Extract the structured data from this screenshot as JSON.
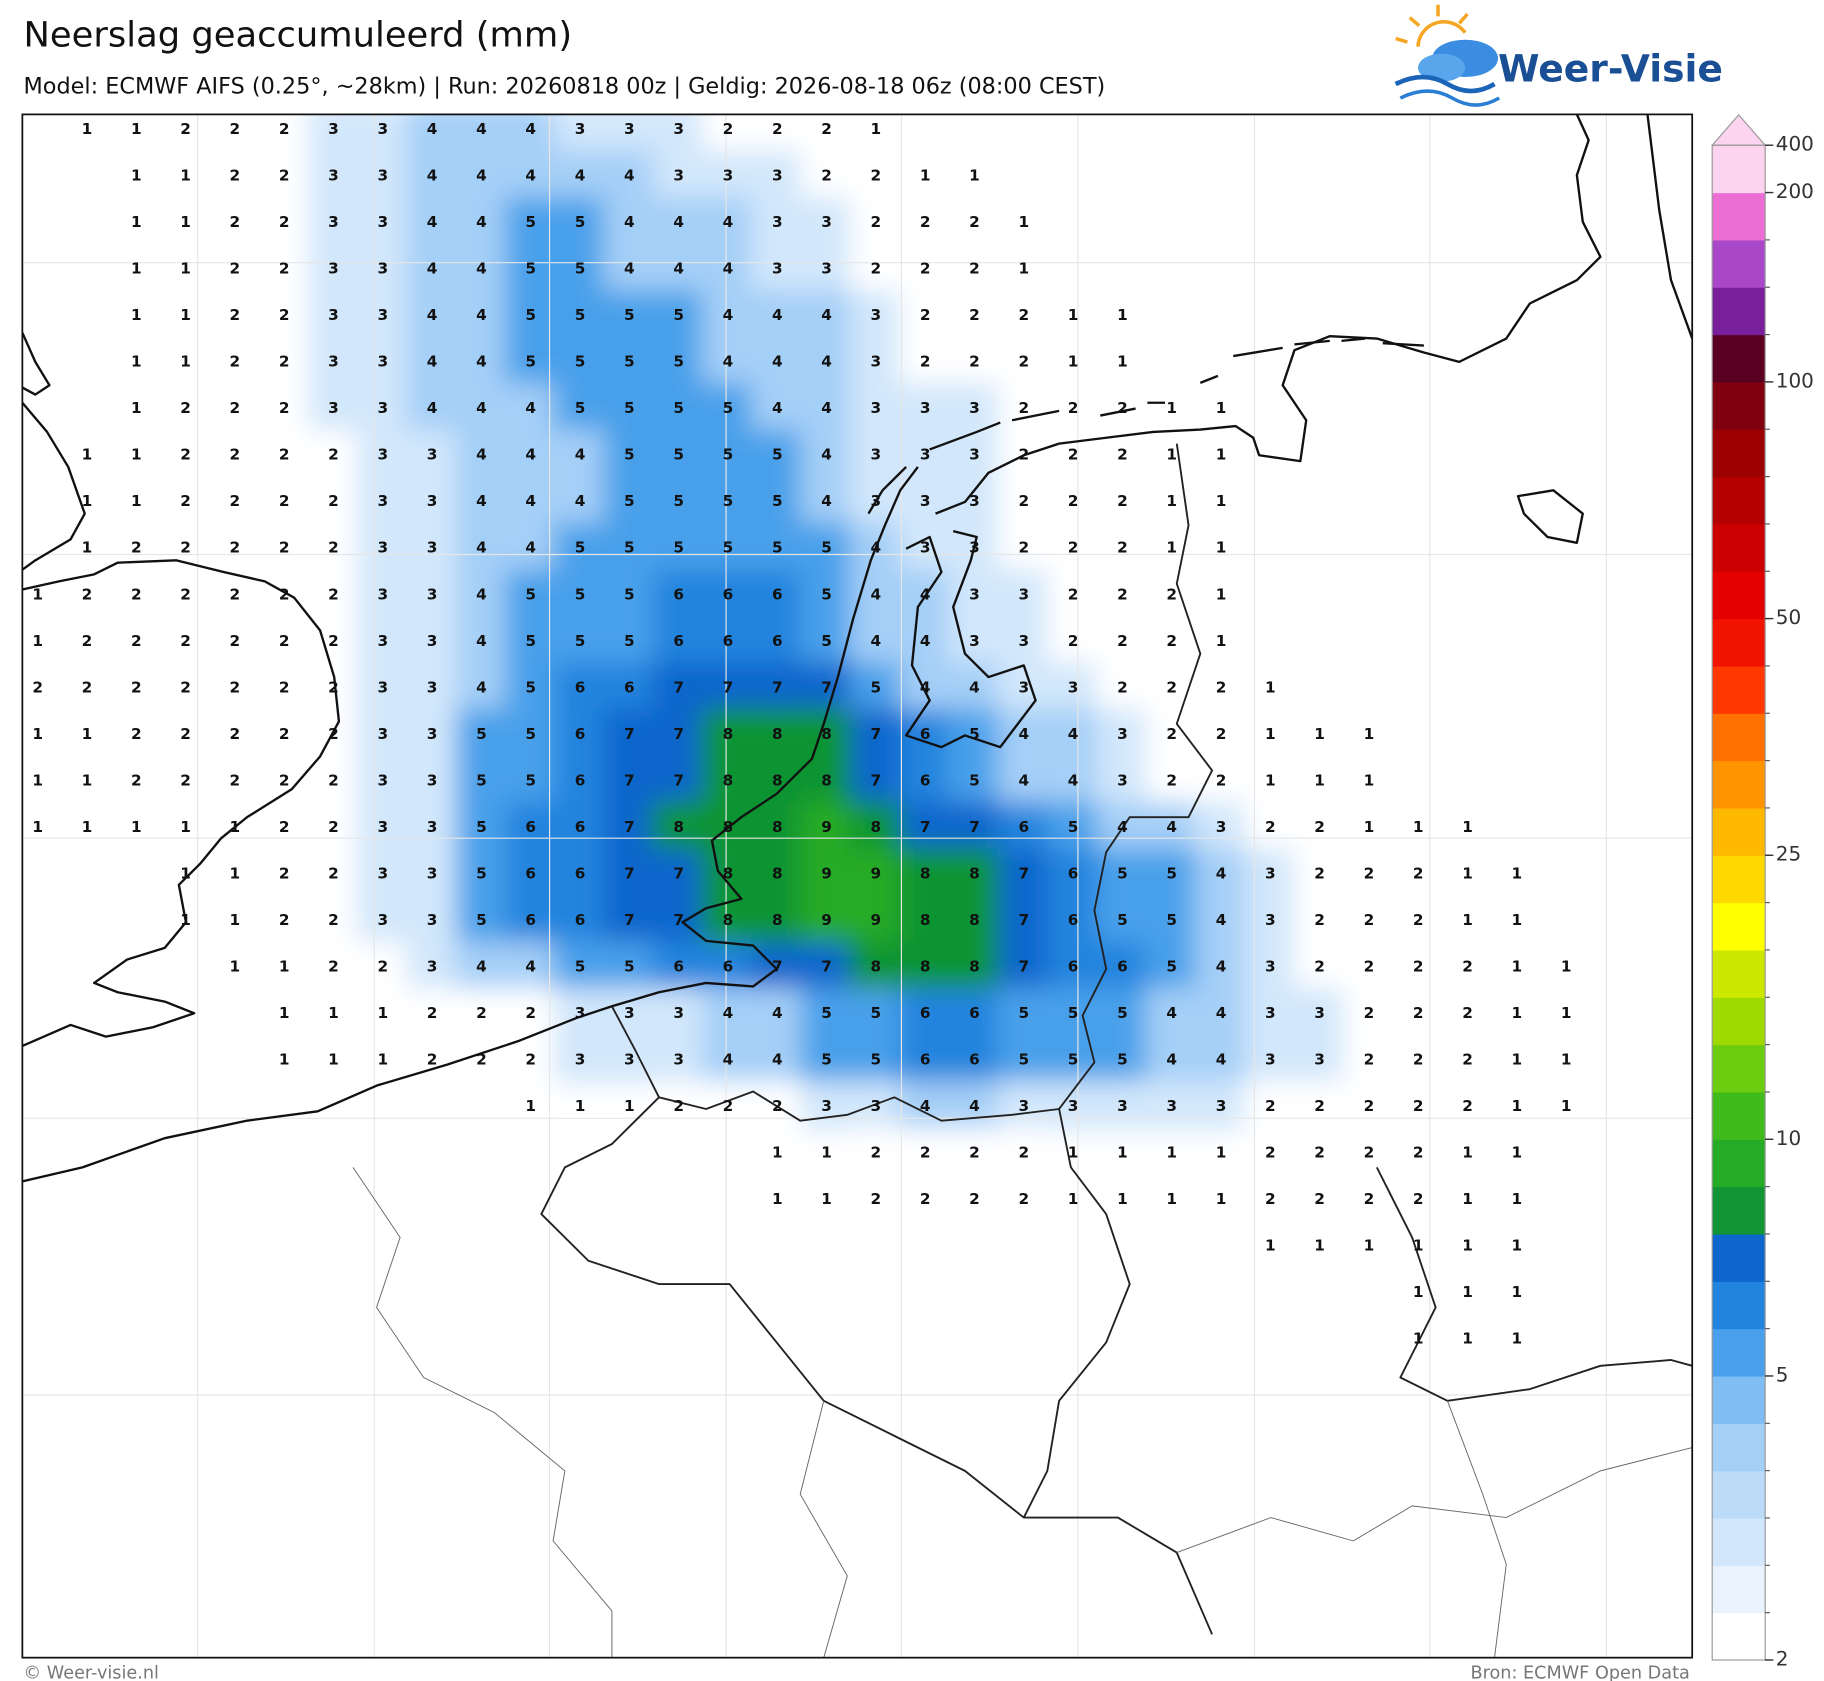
{
  "header": {
    "title": "Neerslag geaccumuleerd (mm)",
    "subtitle": "Model: ECMWF AIFS (0.25°, ~28km)  |  Run: 20260818 00z  |  Geldig: 2026-08-18 06z (08:00 CEST)",
    "logo": "Weer-Visie"
  },
  "colorbar": {
    "levels": [
      2,
      2.5,
      3,
      3.5,
      4,
      4.5,
      5,
      6,
      7,
      8,
      9,
      10,
      12.5,
      15,
      17.5,
      20,
      22.5,
      25,
      30,
      35,
      40,
      45,
      50,
      60,
      70,
      80,
      90,
      100,
      125,
      150,
      175,
      200,
      400
    ],
    "colors": [
      "#ffffff",
      "#e8f3fd",
      "#d2e7fb",
      "#bbdbf9",
      "#a4cff7",
      "#7fbdf2",
      "#4aa0ea",
      "#2284de",
      "#0d66cc",
      "#119433",
      "#25ab25",
      "#3fbb1c",
      "#6ccc10",
      "#9ed900",
      "#cce800",
      "#ffff00",
      "#ffd800",
      "#ffb800",
      "#ff9400",
      "#ff7000",
      "#ff3800",
      "#f01400",
      "#e40000",
      "#cc0000",
      "#b40000",
      "#9c0000",
      "#800010",
      "#5a0020",
      "#7a1f9c",
      "#a847c8",
      "#ec6ed4",
      "#fcd4f0"
    ],
    "ticks": [
      2,
      5,
      10,
      25,
      50,
      100,
      200,
      400
    ]
  },
  "grid": {
    "rows": [
      [
        null,
        1,
        1,
        2,
        2,
        2,
        3,
        3,
        4,
        4,
        4,
        3,
        3,
        3,
        2,
        2,
        2,
        1,
        null,
        null,
        null,
        null,
        null,
        null,
        null,
        null,
        null,
        null,
        null,
        null,
        null,
        null
      ],
      [
        null,
        null,
        1,
        1,
        2,
        2,
        3,
        3,
        4,
        4,
        4,
        4,
        4,
        3,
        3,
        3,
        2,
        2,
        1,
        1,
        null,
        null,
        null,
        null,
        null,
        null,
        null,
        null,
        null,
        null,
        null,
        null
      ],
      [
        null,
        null,
        1,
        1,
        2,
        2,
        3,
        3,
        4,
        4,
        5,
        5,
        4,
        4,
        4,
        3,
        3,
        2,
        2,
        2,
        1,
        null,
        null,
        null,
        null,
        null,
        null,
        null,
        null,
        null,
        null,
        null
      ],
      [
        null,
        null,
        1,
        1,
        2,
        2,
        3,
        3,
        4,
        4,
        5,
        5,
        4,
        4,
        4,
        3,
        3,
        2,
        2,
        2,
        1,
        null,
        null,
        null,
        null,
        null,
        null,
        null,
        null,
        null,
        null,
        null
      ],
      [
        null,
        null,
        1,
        1,
        2,
        2,
        3,
        3,
        4,
        4,
        5,
        5,
        5,
        5,
        4,
        4,
        4,
        3,
        2,
        2,
        2,
        1,
        1,
        null,
        null,
        null,
        null,
        null,
        null,
        null,
        null,
        null
      ],
      [
        null,
        null,
        1,
        1,
        2,
        2,
        3,
        3,
        4,
        4,
        5,
        5,
        5,
        5,
        4,
        4,
        4,
        3,
        2,
        2,
        2,
        1,
        1,
        null,
        null,
        null,
        null,
        null,
        null,
        null,
        null,
        null
      ],
      [
        null,
        null,
        1,
        2,
        2,
        2,
        3,
        3,
        4,
        4,
        4,
        5,
        5,
        5,
        5,
        4,
        4,
        3,
        3,
        3,
        2,
        2,
        2,
        1,
        1,
        null,
        null,
        null,
        null,
        null,
        null,
        null
      ],
      [
        null,
        1,
        1,
        2,
        2,
        2,
        2,
        3,
        3,
        4,
        4,
        4,
        5,
        5,
        5,
        5,
        4,
        3,
        3,
        3,
        2,
        2,
        2,
        1,
        1,
        null,
        null,
        null,
        null,
        null,
        null,
        null
      ],
      [
        null,
        1,
        1,
        2,
        2,
        2,
        2,
        3,
        3,
        4,
        4,
        4,
        5,
        5,
        5,
        5,
        4,
        3,
        3,
        3,
        2,
        2,
        2,
        1,
        1,
        null,
        null,
        null,
        null,
        null,
        null,
        null
      ],
      [
        null,
        1,
        2,
        2,
        2,
        2,
        2,
        3,
        3,
        4,
        4,
        5,
        5,
        5,
        5,
        5,
        5,
        4,
        3,
        3,
        2,
        2,
        2,
        1,
        1,
        null,
        null,
        null,
        null,
        null,
        null,
        null
      ],
      [
        1,
        2,
        2,
        2,
        2,
        2,
        2,
        3,
        3,
        4,
        5,
        5,
        5,
        6,
        6,
        6,
        5,
        4,
        4,
        3,
        3,
        2,
        2,
        2,
        1,
        null,
        null,
        null,
        null,
        null,
        null,
        null
      ],
      [
        1,
        2,
        2,
        2,
        2,
        2,
        2,
        3,
        3,
        4,
        5,
        5,
        5,
        6,
        6,
        6,
        5,
        4,
        4,
        3,
        3,
        2,
        2,
        2,
        1,
        null,
        null,
        null,
        null,
        null,
        null,
        null
      ],
      [
        2,
        2,
        2,
        2,
        2,
        2,
        2,
        3,
        3,
        4,
        5,
        6,
        6,
        7,
        7,
        7,
        7,
        5,
        4,
        4,
        3,
        3,
        2,
        2,
        2,
        1,
        null,
        null,
        null,
        null,
        null,
        null
      ],
      [
        1,
        1,
        2,
        2,
        2,
        2,
        2,
        3,
        3,
        5,
        5,
        6,
        7,
        7,
        8,
        8,
        8,
        7,
        6,
        5,
        4,
        4,
        3,
        2,
        2,
        1,
        1,
        1,
        null,
        null,
        null,
        null
      ],
      [
        1,
        1,
        2,
        2,
        2,
        2,
        2,
        3,
        3,
        5,
        5,
        6,
        7,
        7,
        8,
        8,
        8,
        7,
        6,
        5,
        4,
        4,
        3,
        2,
        2,
        1,
        1,
        1,
        null,
        null,
        null,
        null
      ],
      [
        1,
        1,
        1,
        1,
        1,
        2,
        2,
        3,
        3,
        5,
        6,
        6,
        7,
        8,
        8,
        8,
        9,
        8,
        7,
        7,
        6,
        5,
        4,
        4,
        3,
        2,
        2,
        1,
        1,
        1,
        null,
        null
      ],
      [
        null,
        null,
        null,
        1,
        1,
        2,
        2,
        3,
        3,
        5,
        6,
        6,
        7,
        7,
        8,
        8,
        9,
        9,
        8,
        8,
        7,
        6,
        5,
        5,
        4,
        3,
        2,
        2,
        2,
        1,
        1,
        null
      ],
      [
        null,
        null,
        null,
        1,
        1,
        2,
        2,
        3,
        3,
        5,
        6,
        6,
        7,
        7,
        8,
        8,
        9,
        9,
        8,
        8,
        7,
        6,
        5,
        5,
        4,
        3,
        2,
        2,
        2,
        1,
        1,
        null
      ],
      [
        null,
        null,
        null,
        null,
        1,
        1,
        2,
        2,
        3,
        4,
        4,
        5,
        5,
        6,
        6,
        7,
        7,
        8,
        8,
        8,
        7,
        6,
        6,
        5,
        4,
        3,
        2,
        2,
        2,
        2,
        1,
        1
      ],
      [
        null,
        null,
        null,
        null,
        null,
        1,
        1,
        1,
        2,
        2,
        2,
        3,
        3,
        3,
        4,
        4,
        5,
        5,
        6,
        6,
        5,
        5,
        5,
        4,
        4,
        3,
        3,
        2,
        2,
        2,
        1,
        1
      ],
      [
        null,
        null,
        null,
        null,
        null,
        1,
        1,
        1,
        2,
        2,
        2,
        3,
        3,
        3,
        4,
        4,
        5,
        5,
        6,
        6,
        5,
        5,
        5,
        4,
        4,
        3,
        3,
        2,
        2,
        2,
        1,
        1
      ],
      [
        null,
        null,
        null,
        null,
        null,
        null,
        null,
        null,
        null,
        null,
        1,
        1,
        1,
        2,
        2,
        2,
        3,
        3,
        4,
        4,
        3,
        3,
        3,
        3,
        3,
        2,
        2,
        2,
        2,
        2,
        1,
        1
      ],
      [
        null,
        null,
        null,
        null,
        null,
        null,
        null,
        null,
        null,
        null,
        null,
        null,
        null,
        null,
        null,
        1,
        1,
        2,
        2,
        2,
        2,
        1,
        1,
        1,
        1,
        2,
        2,
        2,
        2,
        1,
        1,
        null
      ],
      [
        null,
        null,
        null,
        null,
        null,
        null,
        null,
        null,
        null,
        null,
        null,
        null,
        null,
        null,
        null,
        1,
        1,
        2,
        2,
        2,
        2,
        1,
        1,
        1,
        1,
        2,
        2,
        2,
        2,
        1,
        1,
        null
      ],
      [
        null,
        null,
        null,
        null,
        null,
        null,
        null,
        null,
        null,
        null,
        null,
        null,
        null,
        null,
        null,
        null,
        null,
        null,
        null,
        null,
        null,
        null,
        null,
        null,
        null,
        1,
        1,
        1,
        1,
        1,
        1,
        null
      ],
      [
        null,
        null,
        null,
        null,
        null,
        null,
        null,
        null,
        null,
        null,
        null,
        null,
        null,
        null,
        null,
        null,
        null,
        null,
        null,
        null,
        null,
        null,
        null,
        null,
        null,
        null,
        null,
        null,
        1,
        1,
        1,
        null
      ],
      [
        null,
        null,
        null,
        null,
        null,
        null,
        null,
        null,
        null,
        null,
        null,
        null,
        null,
        null,
        null,
        null,
        null,
        null,
        null,
        null,
        null,
        null,
        null,
        null,
        null,
        null,
        null,
        null,
        1,
        1,
        1,
        null
      ]
    ]
  },
  "footer": {
    "left": "© Weer-visie.nl",
    "right": "Bron: ECMWF Open Data"
  }
}
